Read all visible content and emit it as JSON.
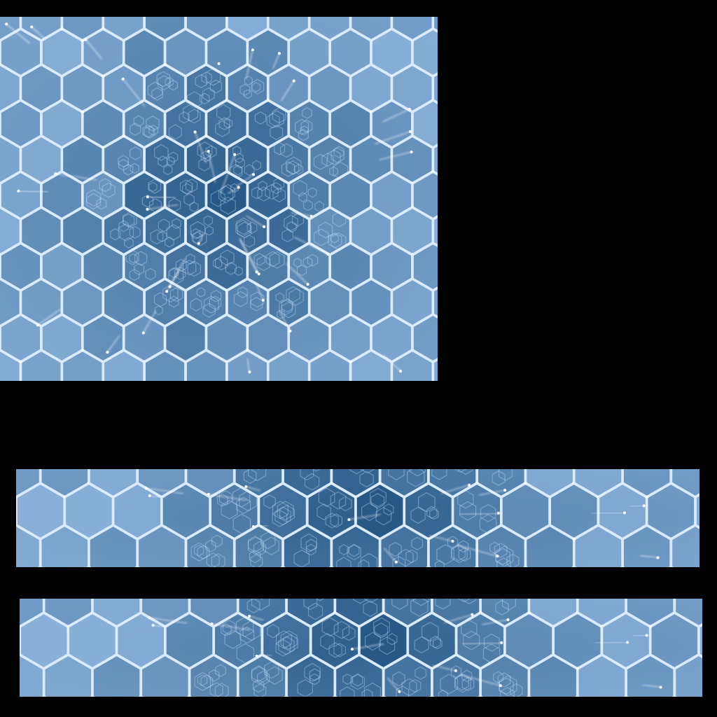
{
  "texture": {
    "description_free": true,
    "palette": {
      "background": "#000000",
      "base": "#3f6f9f",
      "dark": "#1f4f7f",
      "light": "#8fb5dd",
      "edge": "#dcecff",
      "glow": "#cfe6ff"
    }
  },
  "icons": {
    "hex_cell": "hexagon-tile",
    "spark": "light-streak"
  }
}
